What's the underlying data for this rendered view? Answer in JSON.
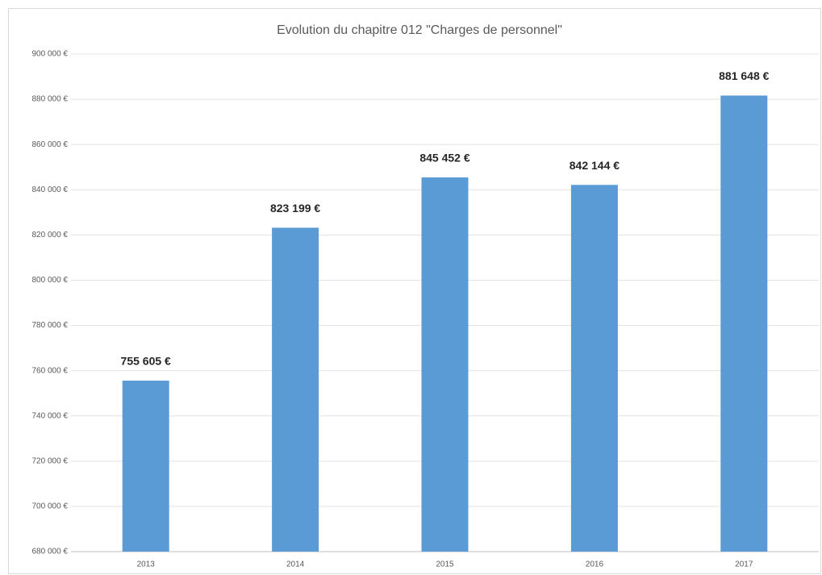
{
  "chart_data": {
    "type": "bar",
    "title": "Evolution du chapitre 012 \"Charges de personnel\"",
    "categories": [
      "2013",
      "2014",
      "2015",
      "2016",
      "2017"
    ],
    "values": [
      755605,
      823199,
      845452,
      842144,
      881648
    ],
    "value_labels": [
      "755 605 €",
      "823 199 €",
      "845 452 €",
      "842 144 €",
      "881 648 €"
    ],
    "color": "#5b9bd5",
    "ylim": [
      680000,
      900000
    ],
    "yticks": [
      {
        "value": 680000,
        "label": "680 000 €"
      },
      {
        "value": 700000,
        "label": "700 000 €"
      },
      {
        "value": 720000,
        "label": "720 000 €"
      },
      {
        "value": 740000,
        "label": "740 000 €"
      },
      {
        "value": 760000,
        "label": "760 000 €"
      },
      {
        "value": 780000,
        "label": "780 000 €"
      },
      {
        "value": 800000,
        "label": "800 000 €"
      },
      {
        "value": 820000,
        "label": "820 000 €"
      },
      {
        "value": 840000,
        "label": "840 000 €"
      },
      {
        "value": 860000,
        "label": "860 000 €"
      },
      {
        "value": 880000,
        "label": "880 000 €"
      },
      {
        "value": 900000,
        "label": "900 000 €"
      }
    ],
    "grid": true
  }
}
